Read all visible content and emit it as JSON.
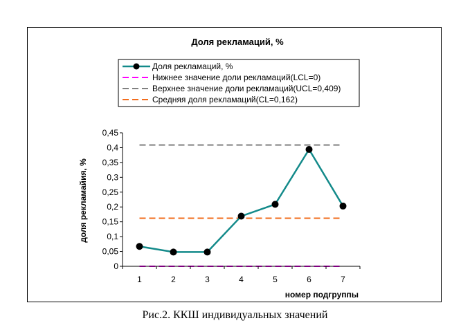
{
  "caption": "Рис.2. ККШ индивидуальных значений",
  "chart_data": {
    "type": "line",
    "title": "Доля рекламаций, %",
    "xlabel": "номер подгруппы",
    "ylabel": "доля рекламайия, %",
    "x": [
      1,
      2,
      3,
      4,
      5,
      6,
      7
    ],
    "x_tick_labels": [
      "1",
      "2",
      "3",
      "4",
      "5",
      "6",
      "7"
    ],
    "ylim": [
      0,
      0.45
    ],
    "y_tick_labels": [
      "0",
      "0,05",
      "0,1",
      "0,15",
      "0,2",
      "0,25",
      "0,3",
      "0,35",
      "0,4",
      "0,45"
    ],
    "grid": false,
    "legend_position": "top",
    "series": [
      {
        "name": "Доля рекламаций, %",
        "style": "line-markers",
        "color": "#138a8a",
        "values": [
          0.067,
          0.048,
          0.048,
          0.169,
          0.209,
          0.394,
          0.203
        ]
      },
      {
        "name": "Нижнее значение доли рекламаций(LCL=0)",
        "style": "dashed",
        "color": "#ff00ff",
        "values": [
          0,
          0,
          0,
          0,
          0,
          0,
          0
        ]
      },
      {
        "name": "Верхнее значение доли рекламаций(UCL=0,409)",
        "style": "dashed",
        "color": "#808080",
        "values": [
          0.409,
          0.409,
          0.409,
          0.409,
          0.409,
          0.409,
          0.409
        ]
      },
      {
        "name": "Средняя доля рекламаций(CL=0,162)",
        "style": "dashed",
        "color": "#f26c1c",
        "values": [
          0.162,
          0.162,
          0.162,
          0.162,
          0.162,
          0.162,
          0.162
        ]
      }
    ]
  }
}
